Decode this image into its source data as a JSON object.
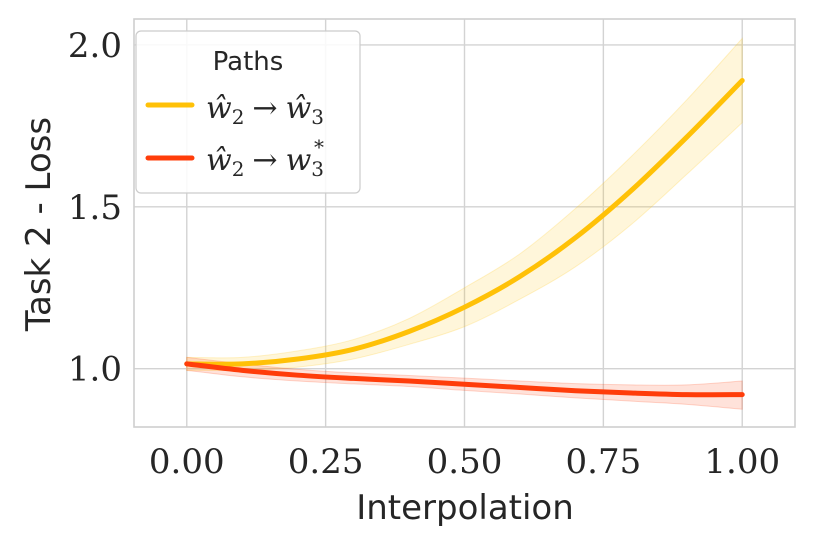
{
  "chart_data": {
    "type": "line",
    "title": "",
    "xlabel": "Interpolation",
    "ylabel": "Task 2 - Loss",
    "xlim": [
      -0.095,
      1.095
    ],
    "ylim": [
      0.82,
      2.08
    ],
    "xticks": [
      0.0,
      0.25,
      0.5,
      0.75,
      1.0
    ],
    "xtick_labels": [
      "0.00",
      "0.25",
      "0.50",
      "0.75",
      "1.00"
    ],
    "yticks": [
      1.0,
      1.5,
      2.0
    ],
    "ytick_labels": [
      "1.0",
      "1.5",
      "2.0"
    ],
    "grid": true,
    "legend": {
      "title": "Paths",
      "position": "upper-left"
    },
    "series": [
      {
        "name": "ŵ₂ → ŵ₃",
        "color": "#FFC107",
        "x": [
          0.0,
          0.1,
          0.2,
          0.3,
          0.4,
          0.5,
          0.6,
          0.7,
          0.8,
          0.9,
          1.0
        ],
        "y": [
          1.015,
          1.015,
          1.03,
          1.06,
          1.115,
          1.19,
          1.285,
          1.405,
          1.55,
          1.715,
          1.89
        ],
        "y_lower": [
          0.995,
          0.995,
          1.005,
          1.03,
          1.075,
          1.13,
          1.215,
          1.315,
          1.445,
          1.6,
          1.76
        ],
        "y_upper": [
          1.035,
          1.035,
          1.055,
          1.09,
          1.155,
          1.25,
          1.355,
          1.495,
          1.655,
          1.83,
          2.02
        ]
      },
      {
        "name": "ŵ₂ → w₃*",
        "color": "#FF3D0A",
        "x": [
          0.0,
          0.1,
          0.2,
          0.3,
          0.4,
          0.5,
          0.6,
          0.7,
          0.8,
          0.9,
          1.0
        ],
        "y": [
          1.015,
          0.995,
          0.98,
          0.97,
          0.962,
          0.952,
          0.942,
          0.932,
          0.925,
          0.92,
          0.92
        ],
        "y_lower": [
          0.995,
          0.975,
          0.962,
          0.953,
          0.945,
          0.933,
          0.922,
          0.91,
          0.9,
          0.89,
          0.875
        ],
        "y_upper": [
          1.035,
          1.015,
          0.998,
          0.987,
          0.979,
          0.971,
          0.962,
          0.954,
          0.95,
          0.95,
          0.962
        ]
      }
    ]
  },
  "legend_labels": {
    "series0_base": "ŵ",
    "series0_sub": "2",
    "series0_arrow": "→",
    "series0_target": "ŵ",
    "series0_target_sub": "3",
    "series1_base": "ŵ",
    "series1_sub": "2",
    "series1_arrow": "→",
    "series1_target": "w",
    "series1_target_sub": "3",
    "series1_target_sup": "*"
  }
}
